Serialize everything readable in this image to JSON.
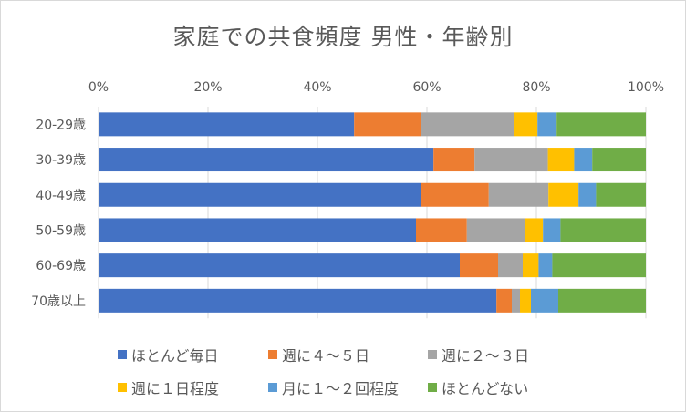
{
  "chart_data": {
    "type": "bar",
    "orientation": "horizontal",
    "stacked": "percent",
    "title": "家庭での共食頻度 男性・年齢別",
    "categories": [
      "20-29歳",
      "30-39歳",
      "40-49歳",
      "50-59歳",
      "60-69歳",
      "70歳以上"
    ],
    "xlim": [
      0,
      100
    ],
    "xticks": [
      "0%",
      "20%",
      "40%",
      "60%",
      "80%",
      "100%"
    ],
    "grid": true,
    "legend_position": "bottom",
    "series": [
      {
        "name": "ほとんど毎日",
        "color": "#4472C4",
        "values": [
          46.7,
          61.2,
          59.0,
          58.0,
          66.0,
          72.7
        ]
      },
      {
        "name": "週に４～５日",
        "color": "#ED7D31",
        "values": [
          12.3,
          7.5,
          12.3,
          9.3,
          7.0,
          2.8
        ]
      },
      {
        "name": "週に２～３日",
        "color": "#A5A5A5",
        "values": [
          16.9,
          13.4,
          10.9,
          10.7,
          4.5,
          1.5
        ]
      },
      {
        "name": "週に１日程度",
        "color": "#FFC000",
        "values": [
          4.3,
          4.8,
          5.5,
          3.2,
          2.9,
          2.0
        ]
      },
      {
        "name": "月に１～２回程度",
        "color": "#5B9BD5",
        "values": [
          3.5,
          3.3,
          3.2,
          3.2,
          2.5,
          5.0
        ]
      },
      {
        "name": "ほとんどない",
        "color": "#70AD47",
        "values": [
          16.3,
          9.8,
          9.1,
          15.6,
          17.1,
          16.0
        ]
      }
    ]
  }
}
